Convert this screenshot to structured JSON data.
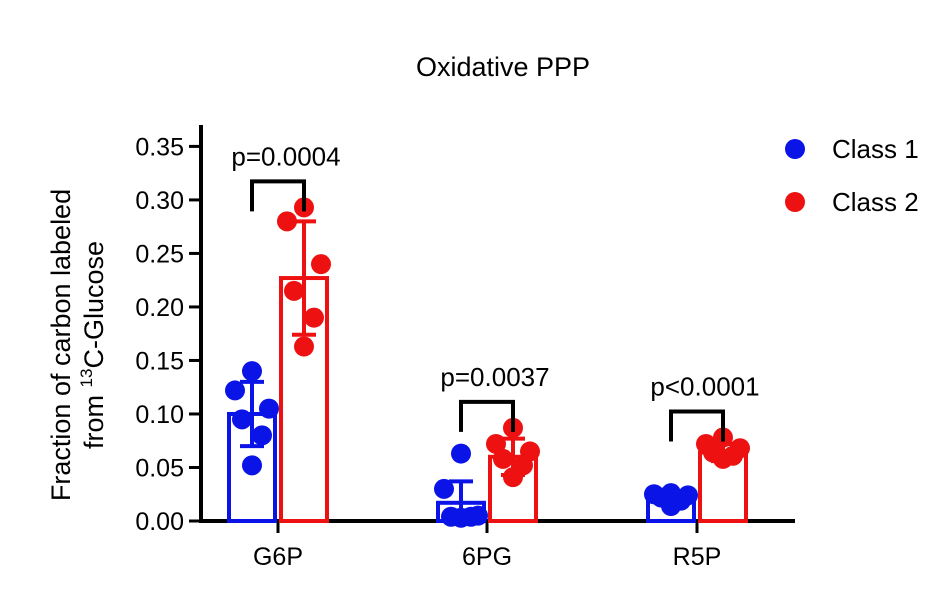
{
  "chart_data": {
    "type": "bar",
    "title": "Oxidative PPP",
    "ylabel_line1": "Fraction of carbon labeled",
    "ylabel_line2_prefix": "from ",
    "ylabel_line2_sup": "13",
    "ylabel_line2_suffix": "C-Glucose",
    "xlabel": "",
    "ylim": [
      0,
      0.37
    ],
    "yticks": [
      0.0,
      0.05,
      0.1,
      0.15,
      0.2,
      0.25,
      0.3,
      0.35
    ],
    "ytick_labels": [
      "0.00",
      "0.05",
      "0.10",
      "0.15",
      "0.20",
      "0.25",
      "0.30",
      "0.35"
    ],
    "categories": [
      "G6P",
      "6PG",
      "R5P"
    ],
    "legend_position": "top-right",
    "series": [
      {
        "name": "Class 1",
        "color": "#0a14e6",
        "values": [
          0.1,
          0.017,
          0.022
        ],
        "errors": [
          0.03,
          0.02,
          0.005
        ],
        "points": [
          [
            0.14,
            0.122,
            0.105,
            0.095,
            0.08,
            0.052
          ],
          [
            0.063,
            0.03,
            0.005,
            0.004,
            0.004,
            0.003
          ],
          [
            0.026,
            0.025,
            0.024,
            0.022,
            0.019,
            0.014
          ]
        ]
      },
      {
        "name": "Class 2",
        "color": "#ee1111",
        "values": [
          0.227,
          0.06,
          0.064
        ],
        "errors": [
          0.053,
          0.017,
          0.008
        ],
        "points": [
          [
            0.293,
            0.28,
            0.24,
            0.215,
            0.19,
            0.163
          ],
          [
            0.087,
            0.072,
            0.065,
            0.058,
            0.052,
            0.041
          ],
          [
            0.078,
            0.072,
            0.068,
            0.064,
            0.061,
            0.058
          ]
        ]
      }
    ],
    "annotations": [
      {
        "category": "G6P",
        "text": "p=0.0004"
      },
      {
        "category": "6PG",
        "text": "p=0.0037"
      },
      {
        "category": "R5P",
        "text": "p<0.0001"
      }
    ]
  }
}
